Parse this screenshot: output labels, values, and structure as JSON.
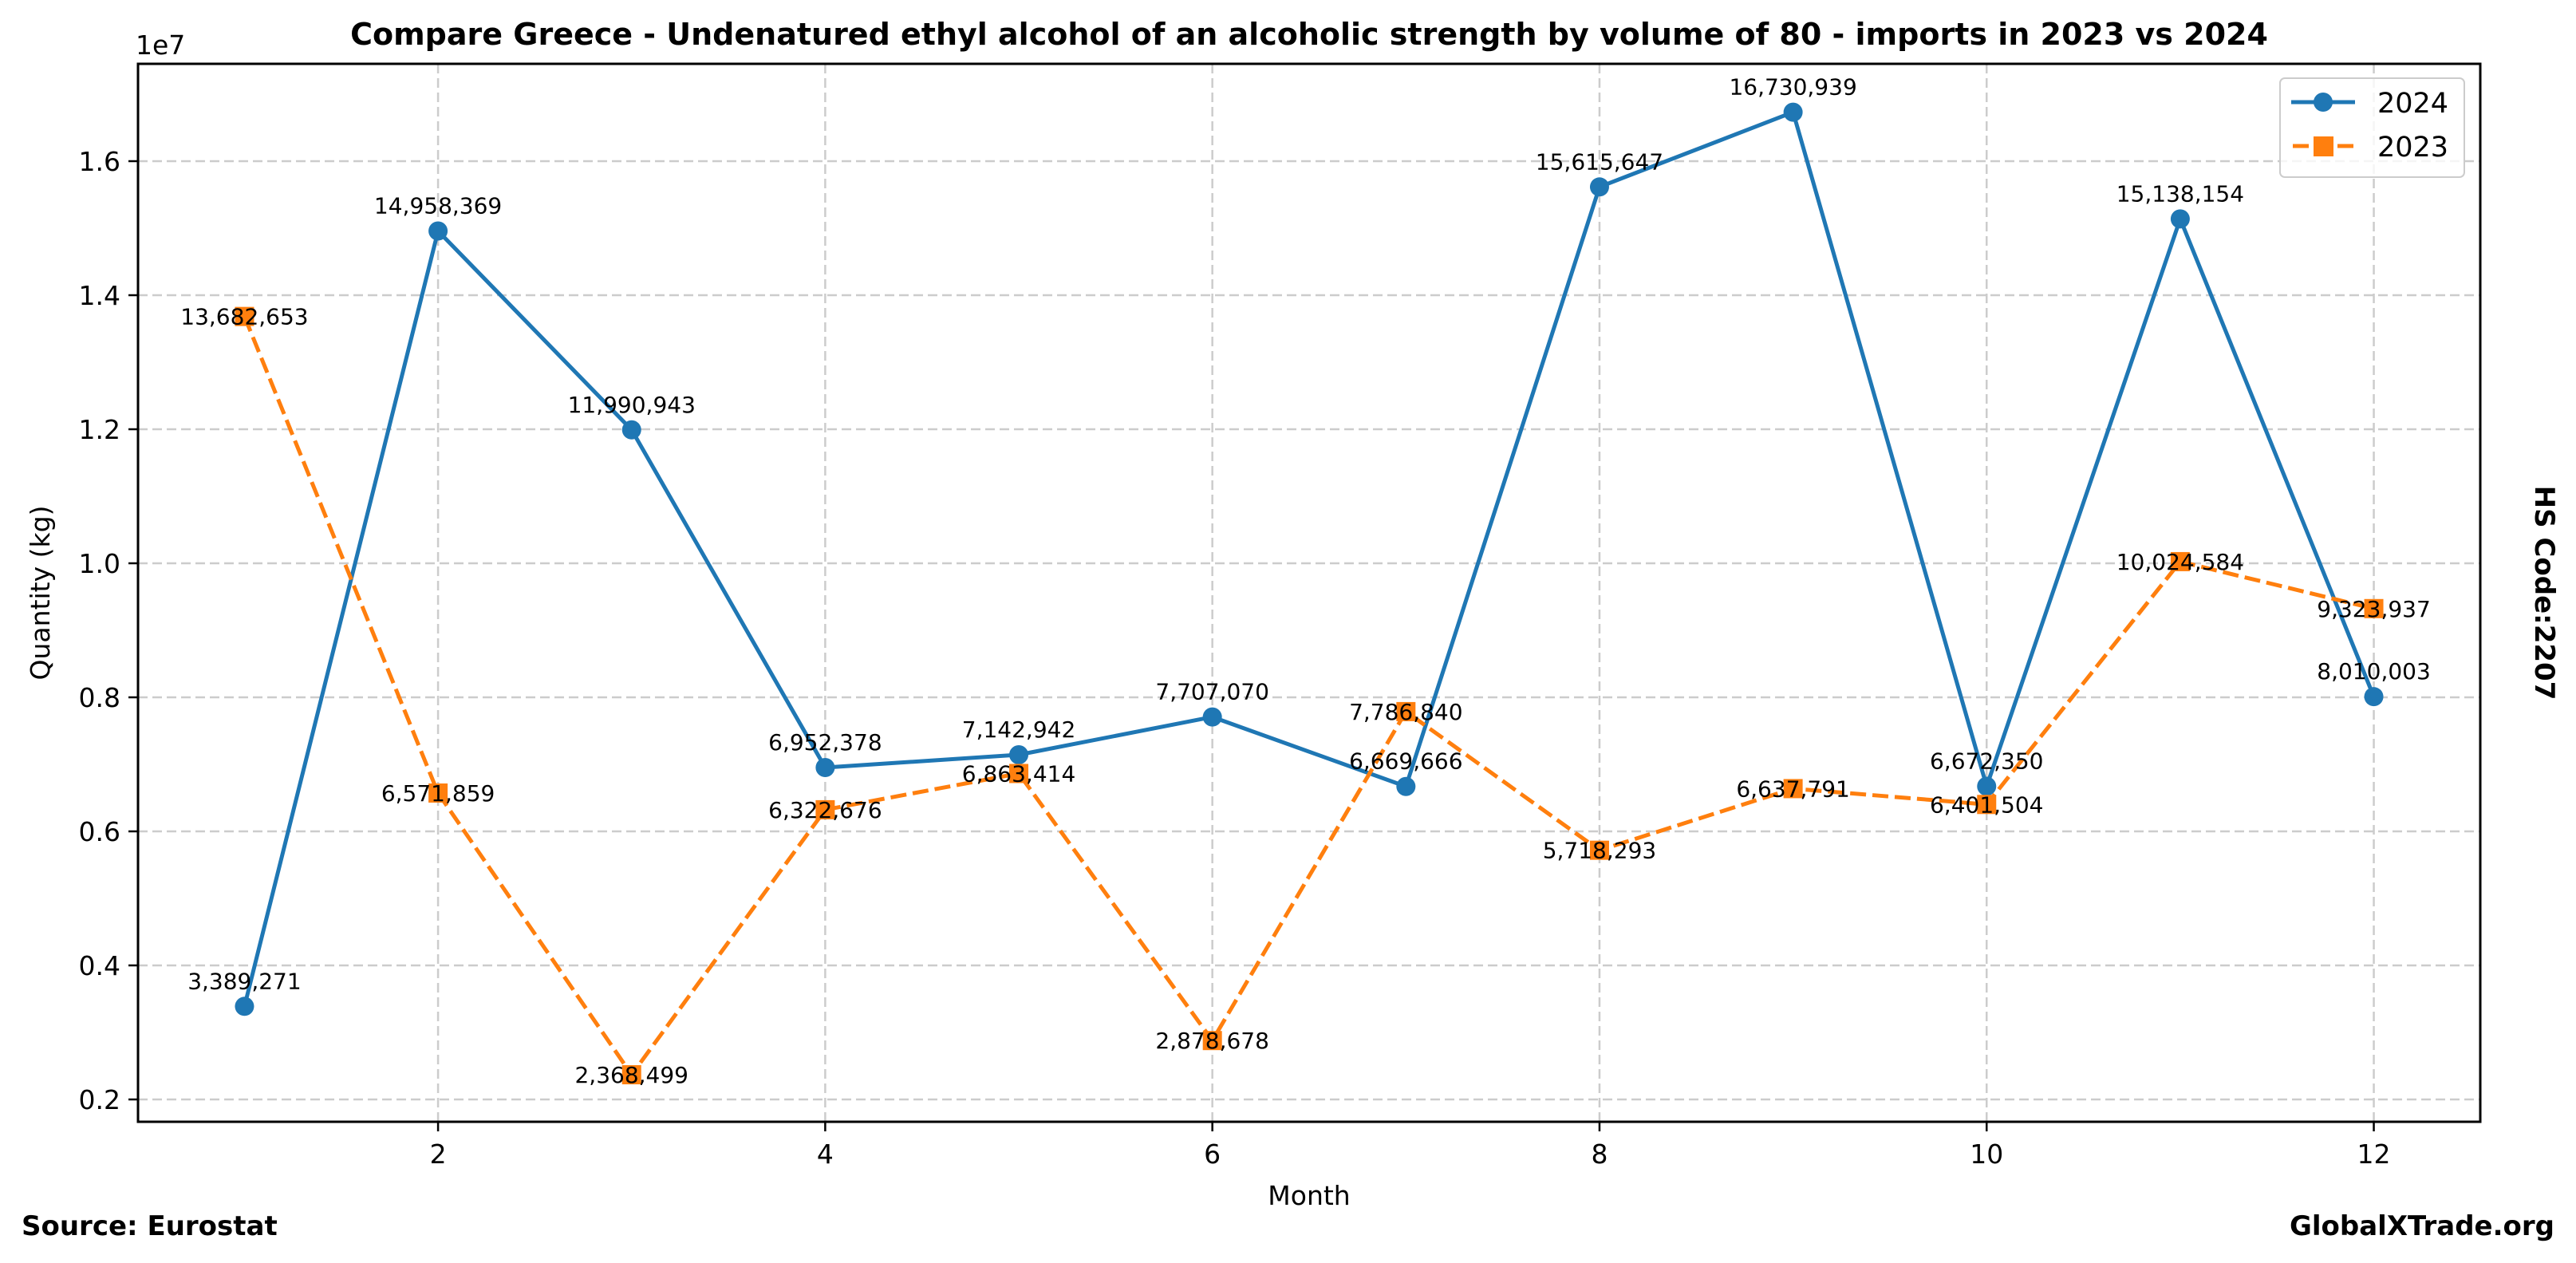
{
  "chart_data": {
    "type": "line",
    "title": "Compare Greece - Undenatured ethyl alcohol of an alcoholic strength by volume of 80 - imports in 2023 vs 2024",
    "xlabel": "Month",
    "ylabel": "Quantity (kg)",
    "y_scale_label": "1e7",
    "xlim": [
      0.45,
      12.55
    ],
    "ylim": [
      1666667,
      17452381
    ],
    "x_ticks": [
      2,
      4,
      6,
      8,
      10,
      12
    ],
    "x_tick_labels": [
      "2",
      "4",
      "6",
      "8",
      "10",
      "12"
    ],
    "y_ticks": [
      2000000,
      4000000,
      6000000,
      8000000,
      10000000,
      12000000,
      14000000,
      16000000
    ],
    "y_tick_labels": [
      "0.2",
      "0.4",
      "0.6",
      "0.8",
      "1.0",
      "1.2",
      "1.4",
      "1.6"
    ],
    "grid": true,
    "legend_position": "top-right",
    "x": [
      1,
      2,
      3,
      4,
      5,
      6,
      7,
      8,
      9,
      10,
      11,
      12
    ],
    "series": [
      {
        "name": "2024",
        "color": "#1f77b4",
        "line_style": "solid",
        "marker": "circle",
        "values": [
          3389271,
          14958369,
          11990943,
          6952378,
          7142942,
          7707070,
          6669666,
          15615647,
          16730939,
          6672350,
          15138154,
          8010003
        ],
        "labels": [
          "3,389,271",
          "14,958,369",
          "11,990,943",
          "6,952,378",
          "7,142,942",
          "7,707,070",
          "6,669,666",
          "15,615,647",
          "16,730,939",
          "6,672,350",
          "15,138,154",
          "8,010,003"
        ]
      },
      {
        "name": "2023",
        "color": "#ff7f0e",
        "line_style": "dashed",
        "marker": "square",
        "values": [
          13682653,
          6571859,
          2368499,
          6322676,
          6863414,
          2878678,
          7786840,
          5718293,
          6637791,
          6401504,
          10024584,
          9323937
        ],
        "labels": [
          "13,682,653",
          "6,571,859",
          "2,368,499",
          "6,322,676",
          "6,863,414",
          "2,878,678",
          "7,786,840",
          "5,718,293",
          "6,637,791",
          "6,401,504",
          "10,024,584",
          "9,323,937"
        ]
      }
    ]
  },
  "side_label": "HS Code:2207",
  "footer": {
    "source": "Source: Eurostat",
    "brand": "GlobalXTrade.org"
  }
}
